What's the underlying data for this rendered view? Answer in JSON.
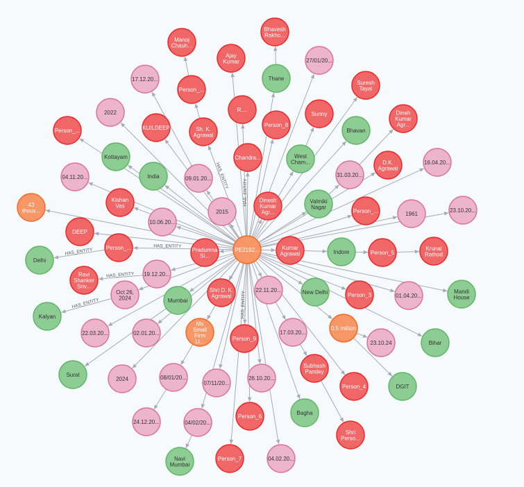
{
  "graph": {
    "relationship_label": "HAS_ENTITY",
    "colors": {
      "Person": {
        "fill": "#f16667",
        "stroke": "#eb2728",
        "text": "#ffffff"
      },
      "Date": {
        "fill": "#ecb5c9",
        "stroke": "#da7298",
        "text": "#333333"
      },
      "Location": {
        "fill": "#8dcc93",
        "stroke": "#5db665",
        "text": "#333333"
      },
      "Other": {
        "fill": "#f79767",
        "stroke": "#f36924",
        "text": "#ffffff"
      }
    },
    "nodes": [
      {
        "id": "center",
        "label": "PE2192...",
        "type": "Other"
      },
      {
        "id": "n1",
        "label": "Manoj\nChauh...",
        "type": "Person"
      },
      {
        "id": "n2",
        "label": "Ajay\nKumar",
        "type": "Person"
      },
      {
        "id": "n3",
        "label": "Bhavesh\nRakho...",
        "type": "Person"
      },
      {
        "id": "n4",
        "label": "27/01/20...",
        "type": "Date"
      },
      {
        "id": "n5",
        "label": "Thane",
        "type": "Location"
      },
      {
        "id": "n6",
        "label": "17.12.20...",
        "type": "Date"
      },
      {
        "id": "n7",
        "label": "Person_...",
        "type": "Person"
      },
      {
        "id": "n8",
        "label": "R....",
        "type": "Person"
      },
      {
        "id": "n9",
        "label": "Suresh\nTayal",
        "type": "Person"
      },
      {
        "id": "n10",
        "label": "Sunny",
        "type": "Person"
      },
      {
        "id": "n11",
        "label": "Person_8",
        "type": "Person"
      },
      {
        "id": "n12",
        "label": "2022",
        "type": "Date"
      },
      {
        "id": "n13",
        "label": "KUILDEEP",
        "type": "Person"
      },
      {
        "id": "n14",
        "label": "Sh. K.\nAgrawal",
        "type": "Person"
      },
      {
        "id": "n15",
        "label": "Person_...",
        "type": "Person"
      },
      {
        "id": "n16",
        "label": "Dineh\nKumar\nAgr...",
        "type": "Person"
      },
      {
        "id": "n17",
        "label": "Bhavan",
        "type": "Location"
      },
      {
        "id": "n18",
        "label": "Kottayam",
        "type": "Location"
      },
      {
        "id": "n19",
        "label": "India",
        "type": "Location"
      },
      {
        "id": "n20",
        "label": "Chandra...",
        "type": "Person"
      },
      {
        "id": "n21",
        "label": "West\nCham...",
        "type": "Location"
      },
      {
        "id": "n22",
        "label": "09.01.20...",
        "type": "Date"
      },
      {
        "id": "n23",
        "label": "04.11.20...",
        "type": "Date"
      },
      {
        "id": "n24",
        "label": "31.03.20...",
        "type": "Date"
      },
      {
        "id": "n25",
        "label": "D.K.\nAgrawal",
        "type": "Person"
      },
      {
        "id": "n26",
        "label": "16.04.20...",
        "type": "Date"
      },
      {
        "id": "n27",
        "label": "Kishan\nVas",
        "type": "Person"
      },
      {
        "id": "n28",
        "label": "2015",
        "type": "Date"
      },
      {
        "id": "n29",
        "label": "Dinesh\nKumar\nAgr...",
        "type": "Person"
      },
      {
        "id": "n30",
        "label": "Valmiki\nNagar",
        "type": "Location"
      },
      {
        "id": "n31",
        "label": "43\nthous...",
        "type": "Other"
      },
      {
        "id": "n32",
        "label": "Person_...",
        "type": "Person"
      },
      {
        "id": "n33",
        "label": "1961",
        "type": "Date"
      },
      {
        "id": "n34",
        "label": "23.10.20...",
        "type": "Date"
      },
      {
        "id": "n35",
        "label": "10.06.20...",
        "type": "Date"
      },
      {
        "id": "n36",
        "label": "DEEP",
        "type": "Person"
      },
      {
        "id": "n37",
        "label": "Person_...",
        "type": "Person"
      },
      {
        "id": "n38",
        "label": "Pradumna\nSi...",
        "type": "Person"
      },
      {
        "id": "n39",
        "label": "Kumar\nAgrawal",
        "type": "Person"
      },
      {
        "id": "n40",
        "label": "Indore",
        "type": "Location"
      },
      {
        "id": "n41",
        "label": "Person_5",
        "type": "Person"
      },
      {
        "id": "n42",
        "label": "Krunal\nRathod",
        "type": "Person"
      },
      {
        "id": "n43",
        "label": "Delhi",
        "type": "Location"
      },
      {
        "id": "n44",
        "label": "19.12.20...",
        "type": "Date"
      },
      {
        "id": "n45",
        "label": "Ravi\nShanker\nSriv...",
        "type": "Person"
      },
      {
        "id": "n46",
        "label": "Oct 26,\n2024",
        "type": "Date"
      },
      {
        "id": "n47",
        "label": "Mumbai",
        "type": "Location"
      },
      {
        "id": "n48",
        "label": "Shri D. K.\nAgrawal",
        "type": "Person"
      },
      {
        "id": "n49",
        "label": "22.11.20...",
        "type": "Date"
      },
      {
        "id": "n50",
        "label": "New Delhi",
        "type": "Location"
      },
      {
        "id": "n51",
        "label": "Person_3",
        "type": "Person"
      },
      {
        "id": "n52",
        "label": "01.04.20...",
        "type": "Date"
      },
      {
        "id": "n53",
        "label": "Mandi\nHouse",
        "type": "Location"
      },
      {
        "id": "n54",
        "label": "Kalyan",
        "type": "Location"
      },
      {
        "id": "n55",
        "label": "22.03.20...",
        "type": "Date"
      },
      {
        "id": "n56",
        "label": "02.01.20...",
        "type": "Date"
      },
      {
        "id": "n57",
        "label": "Ms\nSmall\nFirm\nLt...",
        "type": "Other"
      },
      {
        "id": "n58",
        "label": "Person_9",
        "type": "Person"
      },
      {
        "id": "n59",
        "label": "17.03.20...",
        "type": "Date"
      },
      {
        "id": "n60",
        "label": "0.5 million",
        "type": "Other"
      },
      {
        "id": "n61",
        "label": "23.10.24",
        "type": "Date"
      },
      {
        "id": "n62",
        "label": "Bihar",
        "type": "Location"
      },
      {
        "id": "n63",
        "label": "Surat",
        "type": "Location"
      },
      {
        "id": "n64",
        "label": "2024",
        "type": "Date"
      },
      {
        "id": "n65",
        "label": "08/01/20...",
        "type": "Date"
      },
      {
        "id": "n66",
        "label": "07/11/20...",
        "type": "Date"
      },
      {
        "id": "n67",
        "label": "26.10.20...",
        "type": "Date"
      },
      {
        "id": "n68",
        "label": "Subhash\nPandey",
        "type": "Person"
      },
      {
        "id": "n69",
        "label": "Person_4",
        "type": "Person"
      },
      {
        "id": "n70",
        "label": "DGIT",
        "type": "Location"
      },
      {
        "id": "n71",
        "label": "24.12.20...",
        "type": "Date"
      },
      {
        "id": "n72",
        "label": "04/02/20...",
        "type": "Date"
      },
      {
        "id": "n73",
        "label": "Person_6",
        "type": "Person"
      },
      {
        "id": "n74",
        "label": "Bagha",
        "type": "Location"
      },
      {
        "id": "n75",
        "label": "Shri\nPerso...",
        "type": "Person"
      },
      {
        "id": "n76",
        "label": "Navi\nMumbai",
        "type": "Location"
      },
      {
        "id": "n77",
        "label": "Person_7",
        "type": "Person"
      },
      {
        "id": "n78",
        "label": "04.02.20...",
        "type": "Date"
      }
    ],
    "edges": [
      [
        "n7",
        "n1"
      ],
      [
        "n5",
        "n3"
      ],
      [
        "n14",
        "n7"
      ],
      [
        "n39",
        "n40"
      ],
      [
        "n40",
        "n41"
      ],
      [
        "n41",
        "n42"
      ],
      [
        "n68",
        "n75"
      ],
      [
        "n60",
        "n70"
      ],
      [
        "n60",
        "n61"
      ],
      [
        "n65",
        "n71"
      ],
      [
        "n72",
        "n76"
      ],
      [
        "n57",
        "n65"
      ],
      [
        "n46",
        "n54"
      ],
      [
        "n44",
        "n45"
      ],
      [
        "n37",
        "n43"
      ],
      [
        "n47",
        "n63"
      ],
      [
        "n22",
        "n6"
      ],
      [
        "n21",
        "n10"
      ],
      [
        "n24",
        "n16"
      ],
      [
        "n30",
        "n24"
      ],
      [
        "n49",
        "n59"
      ],
      [
        "n59",
        "n68"
      ]
    ]
  }
}
